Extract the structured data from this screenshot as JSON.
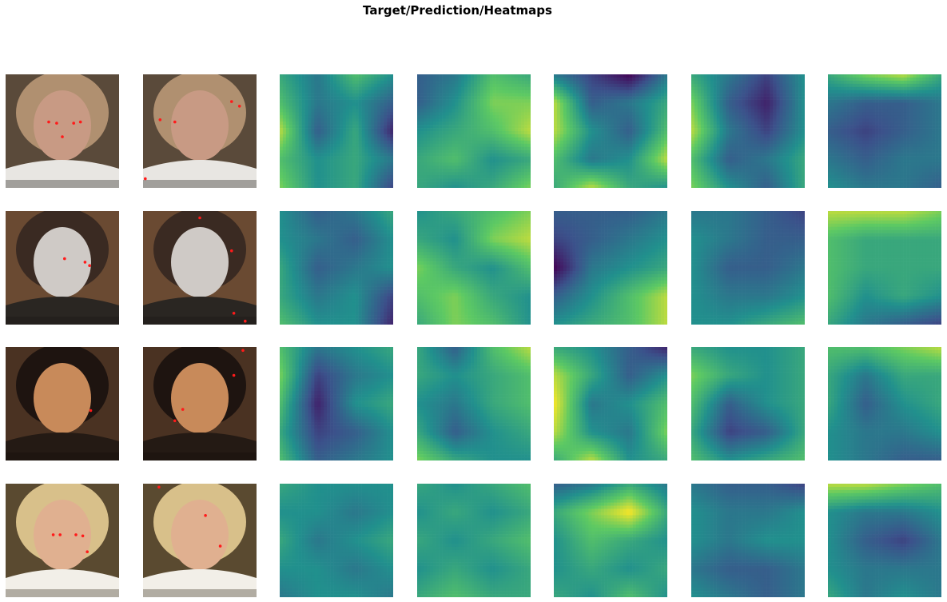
{
  "title": "Target/Prediction/Heatmaps",
  "colormap": [
    "#440154",
    "#3b528b",
    "#21908d",
    "#5dc963",
    "#fde725"
  ],
  "landmark_color": "#ff1a1a",
  "rows": [
    {
      "photo": {
        "bg": "#5a4a3a",
        "hair": "#b09070",
        "skin": "#c89a84",
        "cloth": "#e8e6e2",
        "dark": "#1c1a18"
      },
      "target_points": [
        [
          0.38,
          0.42
        ],
        [
          0.45,
          0.43
        ],
        [
          0.6,
          0.43
        ],
        [
          0.66,
          0.42
        ],
        [
          0.5,
          0.55
        ]
      ],
      "prediction_points": [
        [
          0.15,
          0.4
        ],
        [
          0.28,
          0.42
        ],
        [
          0.78,
          0.24
        ],
        [
          0.85,
          0.28
        ],
        [
          0.02,
          0.92
        ]
      ],
      "heatmap_levels": [
        [
          [
            0.6,
            0.4,
            0.7,
            0.5
          ],
          [
            0.7,
            0.4,
            0.5,
            0.3
          ],
          [
            0.9,
            0.3,
            0.6,
            0.1
          ],
          [
            0.7,
            0.5,
            0.6,
            0.4
          ],
          [
            0.8,
            0.5,
            0.6,
            0.2
          ]
        ],
        [
          [
            0.3,
            0.4,
            0.7,
            0.6
          ],
          [
            0.3,
            0.5,
            0.8,
            0.8
          ],
          [
            0.5,
            0.6,
            0.7,
            0.9
          ],
          [
            0.6,
            0.7,
            0.5,
            0.6
          ],
          [
            0.6,
            0.5,
            0.6,
            0.8
          ]
        ],
        [
          [
            0.4,
            0.2,
            0.0,
            0.4
          ],
          [
            0.9,
            0.3,
            0.4,
            0.6
          ],
          [
            0.9,
            0.5,
            0.3,
            0.7
          ],
          [
            0.7,
            0.4,
            0.5,
            0.9
          ],
          [
            0.6,
            0.9,
            0.6,
            0.5
          ]
        ],
        [
          [
            0.6,
            0.4,
            0.2,
            0.5
          ],
          [
            0.8,
            0.3,
            0.1,
            0.5
          ],
          [
            0.9,
            0.4,
            0.2,
            0.5
          ],
          [
            0.7,
            0.3,
            0.4,
            0.6
          ],
          [
            0.8,
            0.5,
            0.3,
            0.6
          ]
        ],
        [
          [
            0.6,
            0.8,
            0.9,
            0.6
          ],
          [
            0.4,
            0.3,
            0.3,
            0.4
          ],
          [
            0.3,
            0.2,
            0.3,
            0.4
          ],
          [
            0.4,
            0.3,
            0.4,
            0.4
          ],
          [
            0.5,
            0.4,
            0.4,
            0.3
          ]
        ]
      ]
    },
    {
      "photo": {
        "bg": "#6a4a32",
        "hair": "#3a2a22",
        "skin": "#cfcac6",
        "cloth": "#2a2622",
        "dark": "#1a1614"
      },
      "target_points": [
        [
          0.52,
          0.42
        ],
        [
          0.7,
          0.45
        ],
        [
          0.74,
          0.48
        ]
      ],
      "prediction_points": [
        [
          0.5,
          0.06
        ],
        [
          0.78,
          0.35
        ],
        [
          0.8,
          0.9
        ],
        [
          0.9,
          0.97
        ]
      ],
      "heatmap_levels": [
        [
          [
            0.5,
            0.3,
            0.4,
            0.6
          ],
          [
            0.5,
            0.4,
            0.3,
            0.5
          ],
          [
            0.6,
            0.3,
            0.4,
            0.5
          ],
          [
            0.6,
            0.4,
            0.5,
            0.2
          ],
          [
            0.7,
            0.5,
            0.5,
            0.1
          ]
        ],
        [
          [
            0.5,
            0.6,
            0.7,
            0.8
          ],
          [
            0.6,
            0.5,
            0.8,
            0.9
          ],
          [
            0.8,
            0.6,
            0.5,
            0.7
          ],
          [
            0.7,
            0.8,
            0.6,
            0.5
          ],
          [
            0.6,
            0.8,
            0.7,
            0.5
          ]
        ],
        [
          [
            0.3,
            0.3,
            0.3,
            0.4
          ],
          [
            0.2,
            0.3,
            0.4,
            0.5
          ],
          [
            0.0,
            0.4,
            0.5,
            0.6
          ],
          [
            0.3,
            0.5,
            0.7,
            0.9
          ],
          [
            0.5,
            0.6,
            0.7,
            0.9
          ]
        ],
        [
          [
            0.4,
            0.4,
            0.3,
            0.2
          ],
          [
            0.5,
            0.4,
            0.3,
            0.3
          ],
          [
            0.5,
            0.3,
            0.3,
            0.4
          ],
          [
            0.5,
            0.4,
            0.4,
            0.5
          ],
          [
            0.5,
            0.5,
            0.6,
            0.7
          ]
        ],
        [
          [
            0.9,
            0.9,
            0.9,
            0.8
          ],
          [
            0.7,
            0.6,
            0.6,
            0.6
          ],
          [
            0.7,
            0.6,
            0.6,
            0.6
          ],
          [
            0.7,
            0.5,
            0.6,
            0.5
          ],
          [
            0.6,
            0.4,
            0.3,
            0.2
          ]
        ]
      ]
    },
    {
      "photo": {
        "bg": "#4a3222",
        "hair": "#1e1410",
        "skin": "#c88a5a",
        "cloth": "#241a14",
        "dark": "#140e0a"
      },
      "target_points": [
        [
          0.75,
          0.56
        ]
      ],
      "prediction_points": [
        [
          0.88,
          0.03
        ],
        [
          0.8,
          0.25
        ],
        [
          0.28,
          0.65
        ],
        [
          0.35,
          0.55
        ]
      ],
      "heatmap_levels": [
        [
          [
            0.7,
            0.4,
            0.5,
            0.6
          ],
          [
            0.8,
            0.2,
            0.4,
            0.5
          ],
          [
            0.7,
            0.1,
            0.5,
            0.6
          ],
          [
            0.6,
            0.2,
            0.3,
            0.5
          ],
          [
            0.7,
            0.3,
            0.4,
            0.5
          ]
        ],
        [
          [
            0.6,
            0.3,
            0.7,
            0.9
          ],
          [
            0.6,
            0.5,
            0.6,
            0.7
          ],
          [
            0.5,
            0.4,
            0.6,
            0.7
          ],
          [
            0.6,
            0.3,
            0.5,
            0.6
          ],
          [
            0.8,
            0.6,
            0.5,
            0.5
          ]
        ],
        [
          [
            0.6,
            0.5,
            0.3,
            0.1
          ],
          [
            0.9,
            0.6,
            0.3,
            0.5
          ],
          [
            1.0,
            0.4,
            0.5,
            0.7
          ],
          [
            0.9,
            0.5,
            0.4,
            0.8
          ],
          [
            0.6,
            0.9,
            0.5,
            0.6
          ]
        ],
        [
          [
            0.6,
            0.5,
            0.5,
            0.6
          ],
          [
            0.8,
            0.6,
            0.5,
            0.6
          ],
          [
            0.7,
            0.3,
            0.5,
            0.6
          ],
          [
            0.6,
            0.2,
            0.3,
            0.6
          ],
          [
            0.7,
            0.5,
            0.6,
            0.7
          ]
        ],
        [
          [
            0.7,
            0.7,
            0.8,
            0.9
          ],
          [
            0.6,
            0.4,
            0.6,
            0.6
          ],
          [
            0.6,
            0.3,
            0.5,
            0.6
          ],
          [
            0.5,
            0.4,
            0.4,
            0.5
          ],
          [
            0.5,
            0.4,
            0.3,
            0.3
          ]
        ]
      ]
    },
    {
      "photo": {
        "bg": "#5a4a30",
        "hair": "#d8c08a",
        "skin": "#e0b090",
        "cloth": "#f2efe8",
        "dark": "#3a3020"
      },
      "target_points": [
        [
          0.42,
          0.45
        ],
        [
          0.48,
          0.45
        ],
        [
          0.62,
          0.45
        ],
        [
          0.68,
          0.46
        ],
        [
          0.72,
          0.6
        ]
      ],
      "prediction_points": [
        [
          0.14,
          0.03
        ],
        [
          0.55,
          0.28
        ],
        [
          0.68,
          0.55
        ]
      ],
      "heatmap_levels": [
        [
          [
            0.6,
            0.5,
            0.5,
            0.5
          ],
          [
            0.5,
            0.5,
            0.4,
            0.5
          ],
          [
            0.6,
            0.4,
            0.5,
            0.6
          ],
          [
            0.5,
            0.5,
            0.4,
            0.5
          ],
          [
            0.4,
            0.5,
            0.5,
            0.4
          ]
        ],
        [
          [
            0.6,
            0.5,
            0.6,
            0.7
          ],
          [
            0.5,
            0.6,
            0.5,
            0.6
          ],
          [
            0.6,
            0.5,
            0.6,
            0.7
          ],
          [
            0.5,
            0.6,
            0.5,
            0.6
          ],
          [
            0.6,
            0.7,
            0.6,
            0.6
          ]
        ],
        [
          [
            0.3,
            0.4,
            0.6,
            0.4
          ],
          [
            0.6,
            0.8,
            1.0,
            0.6
          ],
          [
            0.5,
            0.7,
            0.6,
            0.5
          ],
          [
            0.5,
            0.6,
            0.5,
            0.6
          ],
          [
            0.6,
            0.5,
            0.7,
            0.5
          ]
        ],
        [
          [
            0.4,
            0.3,
            0.3,
            0.2
          ],
          [
            0.5,
            0.4,
            0.4,
            0.5
          ],
          [
            0.5,
            0.4,
            0.5,
            0.5
          ],
          [
            0.4,
            0.3,
            0.3,
            0.4
          ],
          [
            0.5,
            0.4,
            0.3,
            0.4
          ]
        ],
        [
          [
            0.9,
            0.9,
            0.8,
            0.7
          ],
          [
            0.5,
            0.4,
            0.4,
            0.5
          ],
          [
            0.5,
            0.3,
            0.2,
            0.4
          ],
          [
            0.5,
            0.4,
            0.4,
            0.4
          ],
          [
            0.6,
            0.4,
            0.5,
            0.4
          ]
        ]
      ]
    }
  ]
}
